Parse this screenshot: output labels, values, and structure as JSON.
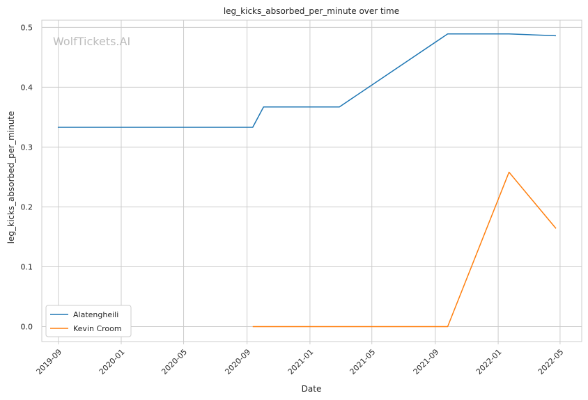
{
  "watermark": "WolfTickets.AI",
  "chart_data": {
    "type": "line",
    "title": "leg_kicks_absorbed_per_minute over time",
    "xlabel": "Date",
    "ylabel": "leg_kicks_absorbed_per_minute",
    "xlim": [
      "2019-07-31",
      "2022-06-12"
    ],
    "ylim": [
      -0.025,
      0.512
    ],
    "x_ticks": [
      "2019-09",
      "2020-01",
      "2020-05",
      "2020-09",
      "2021-01",
      "2021-05",
      "2021-09",
      "2022-01",
      "2022-05"
    ],
    "y_ticks": [
      "0.0",
      "0.1",
      "0.2",
      "0.3",
      "0.4",
      "0.5"
    ],
    "grid": true,
    "legend_position": "lower-left",
    "series": [
      {
        "name": "Alatengheili",
        "color": "#1f77b4",
        "x": [
          "2019-08-31",
          "2020-09-12",
          "2020-10-03",
          "2021-02-27",
          "2021-09-25",
          "2022-01-22",
          "2022-04-23"
        ],
        "y": [
          0.333,
          0.333,
          0.367,
          0.367,
          0.489,
          0.489,
          0.486
        ]
      },
      {
        "name": "Kevin Croom",
        "color": "#ff7f0e",
        "x": [
          "2020-09-12",
          "2021-09-25",
          "2022-01-22",
          "2022-04-23"
        ],
        "y": [
          0.0,
          0.0,
          0.258,
          0.164
        ]
      }
    ]
  }
}
